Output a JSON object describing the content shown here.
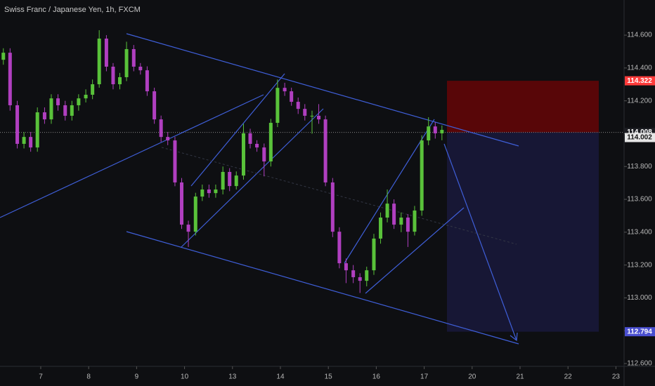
{
  "chart_data": {
    "type": "candlestick",
    "title": "Swiss Franc / Japanese Yen, 1h, FXCM",
    "up_color": "#59c23a",
    "down_color": "#b03fc0",
    "xlim": [
      -0.85,
      12.17
    ],
    "ylim": [
      112.583,
      114.814
    ],
    "xticks": [
      {
        "value": 0,
        "label": "7"
      },
      {
        "value": 1,
        "label": "8"
      },
      {
        "value": 2,
        "label": "9"
      },
      {
        "value": 3,
        "label": "10"
      },
      {
        "value": 4,
        "label": "13"
      },
      {
        "value": 5,
        "label": "14"
      },
      {
        "value": 6,
        "label": "15"
      },
      {
        "value": 7,
        "label": "16"
      },
      {
        "value": 8,
        "label": "17"
      },
      {
        "value": 9,
        "label": "20"
      },
      {
        "value": 10,
        "label": "21"
      },
      {
        "value": 11,
        "label": "22"
      },
      {
        "value": 12,
        "label": "23"
      }
    ],
    "yticks": [
      {
        "value": 112.6,
        "label": "112.600"
      },
      {
        "value": 112.8,
        "label": "112.800"
      },
      {
        "value": 113.0,
        "label": "113.000"
      },
      {
        "value": 113.2,
        "label": "113.200"
      },
      {
        "value": 113.4,
        "label": "113.400"
      },
      {
        "value": 113.6,
        "label": "113.600"
      },
      {
        "value": 113.8,
        "label": "113.800"
      },
      {
        "value": 114.0,
        "label": "114.000"
      },
      {
        "value": 114.2,
        "label": "114.200"
      },
      {
        "value": 114.4,
        "label": "114.400"
      },
      {
        "value": 114.6,
        "label": "114.600"
      }
    ],
    "price_labels": [
      {
        "value": 114.322,
        "label": "114.322",
        "color": "#ff3b3b"
      },
      {
        "value": 114.008,
        "label": "114.008",
        "color": "#d8d8d8"
      },
      {
        "value": 114.002,
        "label": "114.002",
        "color": "#d8d8d8"
      },
      {
        "value": 112.794,
        "label": "112.794",
        "color": "#4a4fd0"
      }
    ],
    "x": [
      -0.78,
      -0.64,
      -0.49,
      -0.35,
      -0.21,
      -0.07,
      0.08,
      0.22,
      0.36,
      0.51,
      0.65,
      0.79,
      0.94,
      1.08,
      1.22,
      1.37,
      1.51,
      1.65,
      1.79,
      1.94,
      2.08,
      2.22,
      2.37,
      2.51,
      2.65,
      2.8,
      2.94,
      3.08,
      3.23,
      3.37,
      3.51,
      3.65,
      3.8,
      3.94,
      4.08,
      4.23,
      4.37,
      4.51,
      4.66,
      4.8,
      4.94,
      5.09,
      5.23,
      5.37,
      5.51,
      5.66,
      5.8,
      5.94,
      6.09,
      6.23,
      6.37,
      6.52,
      6.66,
      6.8,
      6.95,
      7.09,
      7.23,
      7.37,
      7.52,
      7.66,
      7.8,
      7.95,
      8.09,
      8.23,
      8.37
    ],
    "open": [
      114.45,
      114.493,
      114.173,
      113.938,
      113.98,
      113.916,
      114.13,
      114.087,
      114.215,
      114.173,
      114.109,
      114.173,
      114.215,
      114.237,
      114.301,
      114.579,
      114.408,
      114.301,
      114.344,
      114.515,
      114.408,
      114.386,
      114.258,
      114.087,
      113.98,
      113.959,
      113.703,
      113.446,
      113.403,
      113.617,
      113.66,
      113.638,
      113.66,
      113.767,
      113.681,
      113.745,
      114.002,
      113.938,
      113.916,
      113.831,
      114.066,
      114.279,
      114.258,
      114.194,
      114.151,
      114.109,
      114.109,
      114.087,
      113.703,
      113.403,
      113.211,
      113.168,
      113.126,
      113.104,
      113.168,
      113.361,
      113.489,
      113.574,
      113.446,
      113.489,
      113.403,
      113.532,
      113.959,
      114.044,
      114.002
    ],
    "high": [
      114.52,
      114.52,
      114.2,
      114.01,
      114.01,
      114.16,
      114.16,
      114.24,
      114.24,
      114.2,
      114.2,
      114.24,
      114.27,
      114.33,
      114.63,
      114.6,
      114.43,
      114.37,
      114.56,
      114.54,
      114.43,
      114.41,
      114.28,
      114.11,
      114.01,
      113.98,
      113.73,
      113.47,
      113.64,
      113.69,
      113.69,
      113.69,
      113.8,
      113.79,
      113.77,
      114.06,
      114.03,
      113.96,
      113.94,
      114.09,
      114.33,
      114.31,
      114.28,
      114.22,
      114.18,
      114.14,
      114.18,
      114.11,
      113.73,
      113.43,
      113.24,
      113.2,
      113.15,
      113.19,
      113.39,
      113.52,
      113.66,
      113.6,
      113.52,
      113.51,
      113.56,
      113.99,
      114.1,
      114.07,
      114.05
    ],
    "low": [
      114.42,
      114.14,
      113.91,
      113.91,
      113.89,
      113.89,
      114.06,
      114.06,
      114.14,
      114.08,
      114.08,
      114.14,
      114.19,
      114.21,
      114.28,
      114.38,
      114.27,
      114.27,
      114.32,
      114.38,
      114.36,
      114.23,
      114.06,
      113.95,
      113.93,
      113.68,
      113.42,
      113.31,
      113.38,
      113.59,
      113.61,
      113.61,
      113.63,
      113.65,
      113.66,
      113.72,
      113.91,
      113.89,
      113.74,
      113.8,
      114.04,
      114.23,
      114.17,
      114.12,
      114.08,
      114.0,
      114.06,
      113.68,
      113.37,
      113.18,
      113.09,
      113.09,
      113.03,
      113.07,
      113.14,
      113.33,
      113.46,
      113.42,
      113.4,
      113.31,
      113.38,
      113.5,
      113.93,
      113.97,
      113.96
    ],
    "close": [
      114.493,
      114.173,
      113.938,
      113.98,
      113.916,
      114.13,
      114.087,
      114.215,
      114.173,
      114.109,
      114.173,
      114.215,
      114.237,
      114.301,
      114.579,
      114.408,
      114.301,
      114.344,
      114.515,
      114.408,
      114.386,
      114.258,
      114.087,
      113.98,
      113.959,
      113.703,
      113.446,
      113.403,
      113.617,
      113.66,
      113.638,
      113.66,
      113.767,
      113.681,
      113.745,
      114.002,
      113.938,
      113.916,
      113.831,
      114.066,
      114.279,
      114.258,
      114.194,
      114.151,
      114.109,
      114.109,
      114.087,
      113.703,
      113.403,
      113.211,
      113.168,
      113.126,
      113.104,
      113.168,
      113.361,
      113.489,
      113.574,
      113.446,
      113.489,
      113.403,
      113.532,
      113.959,
      114.044,
      114.002,
      114.023
    ]
  }
}
